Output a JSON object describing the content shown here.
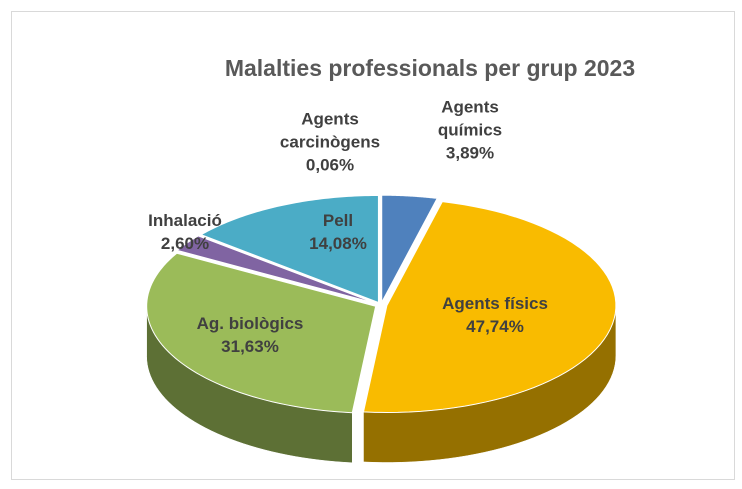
{
  "chart_data": {
    "type": "pie3d",
    "title": "Malalties professionals per grup 2023",
    "categories": [
      "Agents químics",
      "Agents físics",
      "Ag. biològics",
      "Inhalació",
      "Agents carcinògens",
      "Pell"
    ],
    "values": [
      3.89,
      47.74,
      31.63,
      2.6,
      0.06,
      14.08
    ],
    "value_labels": [
      "3,89%",
      "47,74%",
      "31,63%",
      "2,60%",
      "0,06%",
      "14,08%"
    ],
    "colors": [
      "#4f81bd",
      "#f9bb00",
      "#9bbb59",
      "#8064a2",
      "#c0504d",
      "#4bacc6"
    ]
  }
}
